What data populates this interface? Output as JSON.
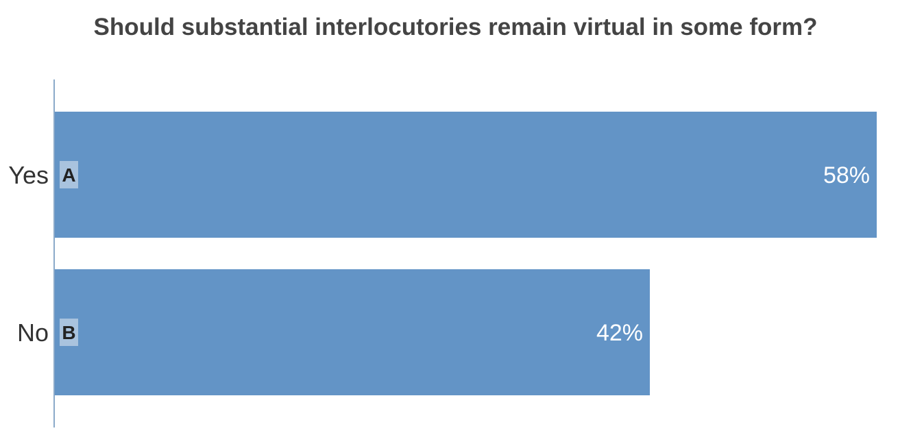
{
  "colors": {
    "bar": "#6394c6",
    "badge": "#a9c3de",
    "axis": "#8aa9c9",
    "title": "#444444"
  },
  "chart_data": {
    "type": "bar",
    "orientation": "horizontal",
    "title": "Should substantial interlocutories remain virtual in some form?",
    "categories": [
      "Yes",
      "No"
    ],
    "letters": [
      "A",
      "B"
    ],
    "values": [
      58,
      42
    ],
    "value_labels": [
      "58%",
      "42%"
    ],
    "unit": "%",
    "xlim": [
      0,
      58
    ],
    "grid": false,
    "legend": "none"
  }
}
